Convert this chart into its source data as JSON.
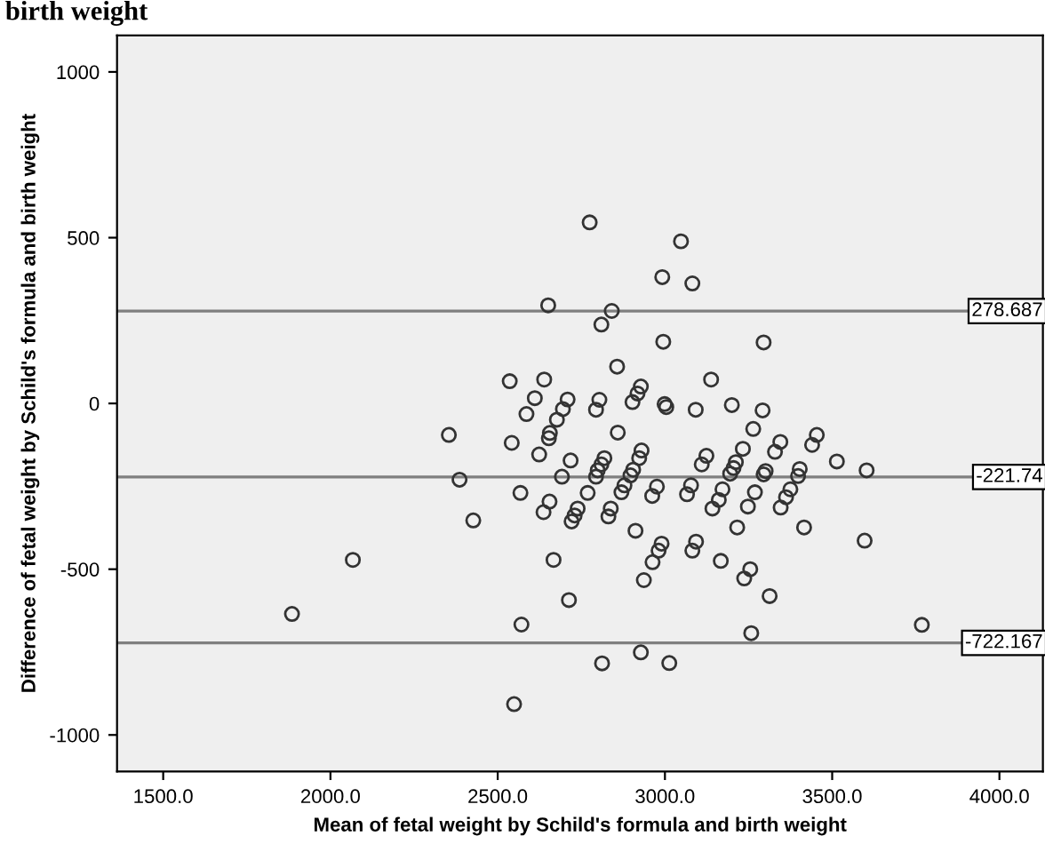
{
  "chart_data": {
    "type": "scatter",
    "title": "birth weight",
    "xlabel": "Mean of fetal weight by Schild's formula and birth weight",
    "ylabel": "Difference of fetal weight by Schild's formula and birth weight",
    "marker": "circle",
    "grid": false,
    "xlim": [
      1362,
      4130
    ],
    "ylim": [
      -1110,
      1110
    ],
    "xticks": [
      {
        "value": 1500,
        "label": "1500.0"
      },
      {
        "value": 2000,
        "label": "2000.0"
      },
      {
        "value": 2500,
        "label": "2500.0"
      },
      {
        "value": 3000,
        "label": "3000.0"
      },
      {
        "value": 3500,
        "label": "3500.0"
      },
      {
        "value": 4000,
        "label": "4000.0"
      }
    ],
    "yticks": [
      {
        "value": -1000,
        "label": "-1000"
      },
      {
        "value": -500,
        "label": "-500"
      },
      0,
      500,
      1000
    ],
    "ref_lines": [
      {
        "axis": "y",
        "value": 278.687,
        "label": "278.687",
        "color": "#7f7f7f"
      },
      {
        "axis": "y",
        "value": -221.74,
        "label": "-221.74",
        "color": "#7f7f7f"
      },
      {
        "axis": "y",
        "value": -722.167,
        "label": "-722.167",
        "color": "#7f7f7f"
      }
    ],
    "series": [
      {
        "color": "#333333",
        "x": [
          2775,
          2651,
          2810,
          2536,
          2639,
          2611,
          2709,
          2804,
          2586,
          2695,
          2794,
          2677,
          2354,
          2656,
          2653,
          2542,
          2624,
          2718,
          2386,
          2692,
          2794,
          2568,
          2769,
          2655,
          2637,
          2739,
          2730,
          2427,
          2721,
          3048,
          2992,
          3082,
          2841,
          2995,
          3295,
          2857,
          3138,
          2928,
          2918,
          2903,
          2999,
          3004,
          3092,
          3200,
          3292,
          2859,
          3264,
          3345,
          3454,
          3440,
          3329,
          3233,
          3124,
          3110,
          3212,
          3205,
          3195,
          3514,
          3603,
          2819,
          2810,
          2799,
          2930,
          2923,
          2905,
          2897,
          3301,
          3295,
          3403,
          3398,
          2879,
          2870,
          2976,
          2962,
          3078,
          3066,
          3172,
          3161,
          3142,
          3269,
          3248,
          3375,
          3362,
          3346,
          2838,
          2831,
          2912,
          3216,
          3416,
          3597,
          2990,
          2981,
          3093,
          3082,
          2963,
          3167,
          3255,
          3237,
          2937,
          3313,
          2713,
          3768,
          3258,
          2928,
          2812,
          3013,
          2067,
          2667,
          1885,
          2571,
          2549
        ],
        "values": [
          546,
          296,
          238,
          67,
          72,
          16,
          12,
          11,
          -32,
          -17,
          -19,
          -49,
          -95,
          -89,
          -105,
          -119,
          -154,
          -172,
          -230,
          -221,
          -221,
          -270,
          -270,
          -296,
          -328,
          -317,
          -338,
          -353,
          -356,
          489,
          381,
          362,
          279,
          186,
          184,
          111,
          72,
          51,
          30,
          4,
          -2,
          -11,
          -19,
          -5,
          -21,
          -88,
          -77,
          -116,
          -95,
          -125,
          -146,
          -137,
          -158,
          -184,
          -177,
          -195,
          -212,
          -175,
          -202,
          -165,
          -184,
          -202,
          -142,
          -165,
          -200,
          -217,
          -204,
          -214,
          -198,
          -219,
          -247,
          -268,
          -251,
          -279,
          -247,
          -274,
          -259,
          -291,
          -317,
          -268,
          -311,
          -259,
          -283,
          -314,
          -317,
          -341,
          -384,
          -374,
          -374,
          -414,
          -423,
          -444,
          -417,
          -444,
          -479,
          -475,
          -500,
          -528,
          -533,
          -581,
          -593,
          -668,
          -693,
          -751,
          -784,
          -783,
          -472,
          -472,
          -635,
          -667,
          -907
        ]
      }
    ]
  }
}
